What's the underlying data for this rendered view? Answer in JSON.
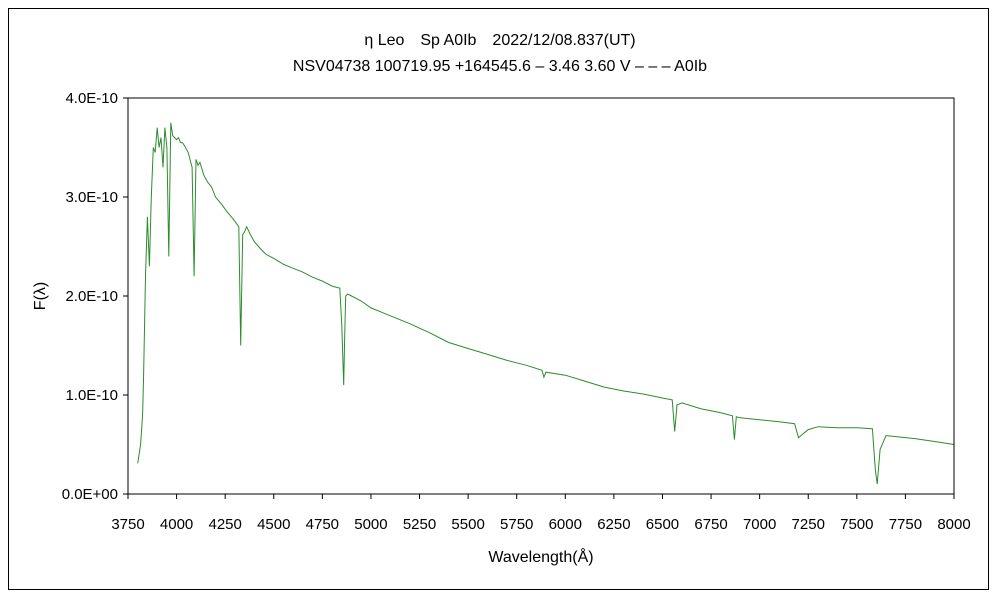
{
  "chart_data": {
    "type": "line",
    "title": "η Leo　Sp A0Ib　2022/12/08.837(UT)",
    "subtitle": "NSV04738 100719.95 +164545.6 – 3.46 3.60 V – – – A0Ib",
    "xlabel": "Wavelength(Å)",
    "ylabel": "F(λ)",
    "xlim": [
      3750,
      8000
    ],
    "ylim": [
      0,
      4e-10
    ],
    "x_ticks": [
      3750,
      4000,
      4250,
      4500,
      4750,
      5000,
      5250,
      5500,
      5750,
      6000,
      6250,
      6500,
      6750,
      7000,
      7250,
      7500,
      7750,
      8000
    ],
    "x_tick_labels": [
      "3750",
      "4000",
      "4250",
      "4500",
      "4750",
      "5000",
      "5250",
      "5500",
      "5750",
      "6000",
      "6250",
      "6500",
      "6750",
      "7000",
      "7250",
      "7500",
      "7750",
      "8000"
    ],
    "y_ticks": [
      0,
      1e-10,
      2e-10,
      3e-10,
      4e-10
    ],
    "y_tick_labels": [
      "0.0E+00",
      "1.0E-10",
      "2.0E-10",
      "3.0E-10",
      "4.0E-10"
    ],
    "grid": false,
    "legend": "none",
    "colors": {
      "line": "#2e8b2e",
      "axis": "#000000"
    },
    "series": [
      {
        "x": [
          3800,
          3815,
          3825,
          3830,
          3840,
          3850,
          3860,
          3870,
          3880,
          3890,
          3900,
          3910,
          3920,
          3930,
          3940,
          3950,
          3960,
          3970,
          3980,
          3990,
          4000,
          4010,
          4020,
          4030,
          4040,
          4060,
          4080,
          4090,
          4100,
          4110,
          4120,
          4140,
          4160,
          4180,
          4200,
          4230,
          4260,
          4290,
          4320,
          4330,
          4340,
          4350,
          4360,
          4380,
          4400,
          4430,
          4460,
          4500,
          4550,
          4600,
          4650,
          4700,
          4750,
          4800,
          4840,
          4850,
          4860,
          4865,
          4870,
          4880,
          4900,
          4950,
          5000,
          5100,
          5200,
          5300,
          5400,
          5500,
          5600,
          5700,
          5800,
          5880,
          5890,
          5900,
          6000,
          6100,
          6200,
          6300,
          6400,
          6500,
          6550,
          6563,
          6575,
          6600,
          6700,
          6800,
          6860,
          6870,
          6880,
          6900,
          7000,
          7100,
          7180,
          7200,
          7250,
          7300,
          7400,
          7500,
          7580,
          7595,
          7605,
          7620,
          7650,
          7700,
          7750,
          7800,
          7900,
          8000
        ],
        "y": [
          3.1e-11,
          5e-11,
          8e-11,
          1.15e-10,
          2.2e-10,
          2.8e-10,
          2.3e-10,
          3e-10,
          3.5e-10,
          3.45e-10,
          3.7e-10,
          3.5e-10,
          3.6e-10,
          3.3e-10,
          3.7e-10,
          3.5e-10,
          2.4e-10,
          3.75e-10,
          3.62e-10,
          3.6e-10,
          3.58e-10,
          3.6e-10,
          3.55e-10,
          3.55e-10,
          3.52e-10,
          3.45e-10,
          3.3e-10,
          2.2e-10,
          3.38e-10,
          3.32e-10,
          3.35e-10,
          3.22e-10,
          3.15e-10,
          3.1e-10,
          3e-10,
          2.93e-10,
          2.85e-10,
          2.78e-10,
          2.7e-10,
          1.5e-10,
          2.62e-10,
          2.65e-10,
          2.7e-10,
          2.62e-10,
          2.55e-10,
          2.48e-10,
          2.42e-10,
          2.38e-10,
          2.32e-10,
          2.28e-10,
          2.24e-10,
          2.19e-10,
          2.15e-10,
          2.1e-10,
          2.08e-10,
          1.7e-10,
          1.1e-10,
          1.6e-10,
          2e-10,
          2.02e-10,
          2e-10,
          1.95e-10,
          1.88e-10,
          1.8e-10,
          1.72e-10,
          1.63e-10,
          1.53e-10,
          1.47e-10,
          1.41e-10,
          1.35e-10,
          1.3e-10,
          1.25e-10,
          1.18e-10,
          1.23e-10,
          1.2e-10,
          1.14e-10,
          1.08e-10,
          1.04e-10,
          1.01e-10,
          9.7e-11,
          9.5e-11,
          6.3e-11,
          9e-11,
          9.2e-11,
          8.6e-11,
          8.2e-11,
          7.9e-11,
          5.5e-11,
          7.8e-11,
          7.7e-11,
          7.5e-11,
          7.3e-11,
          7.1e-11,
          5.7e-11,
          6.5e-11,
          6.8e-11,
          6.7e-11,
          6.7e-11,
          6.6e-11,
          2.5e-11,
          1e-11,
          4.5e-11,
          5.9e-11,
          5.8e-11,
          5.7e-11,
          5.6e-11,
          5.3e-11,
          5e-11
        ]
      }
    ]
  }
}
